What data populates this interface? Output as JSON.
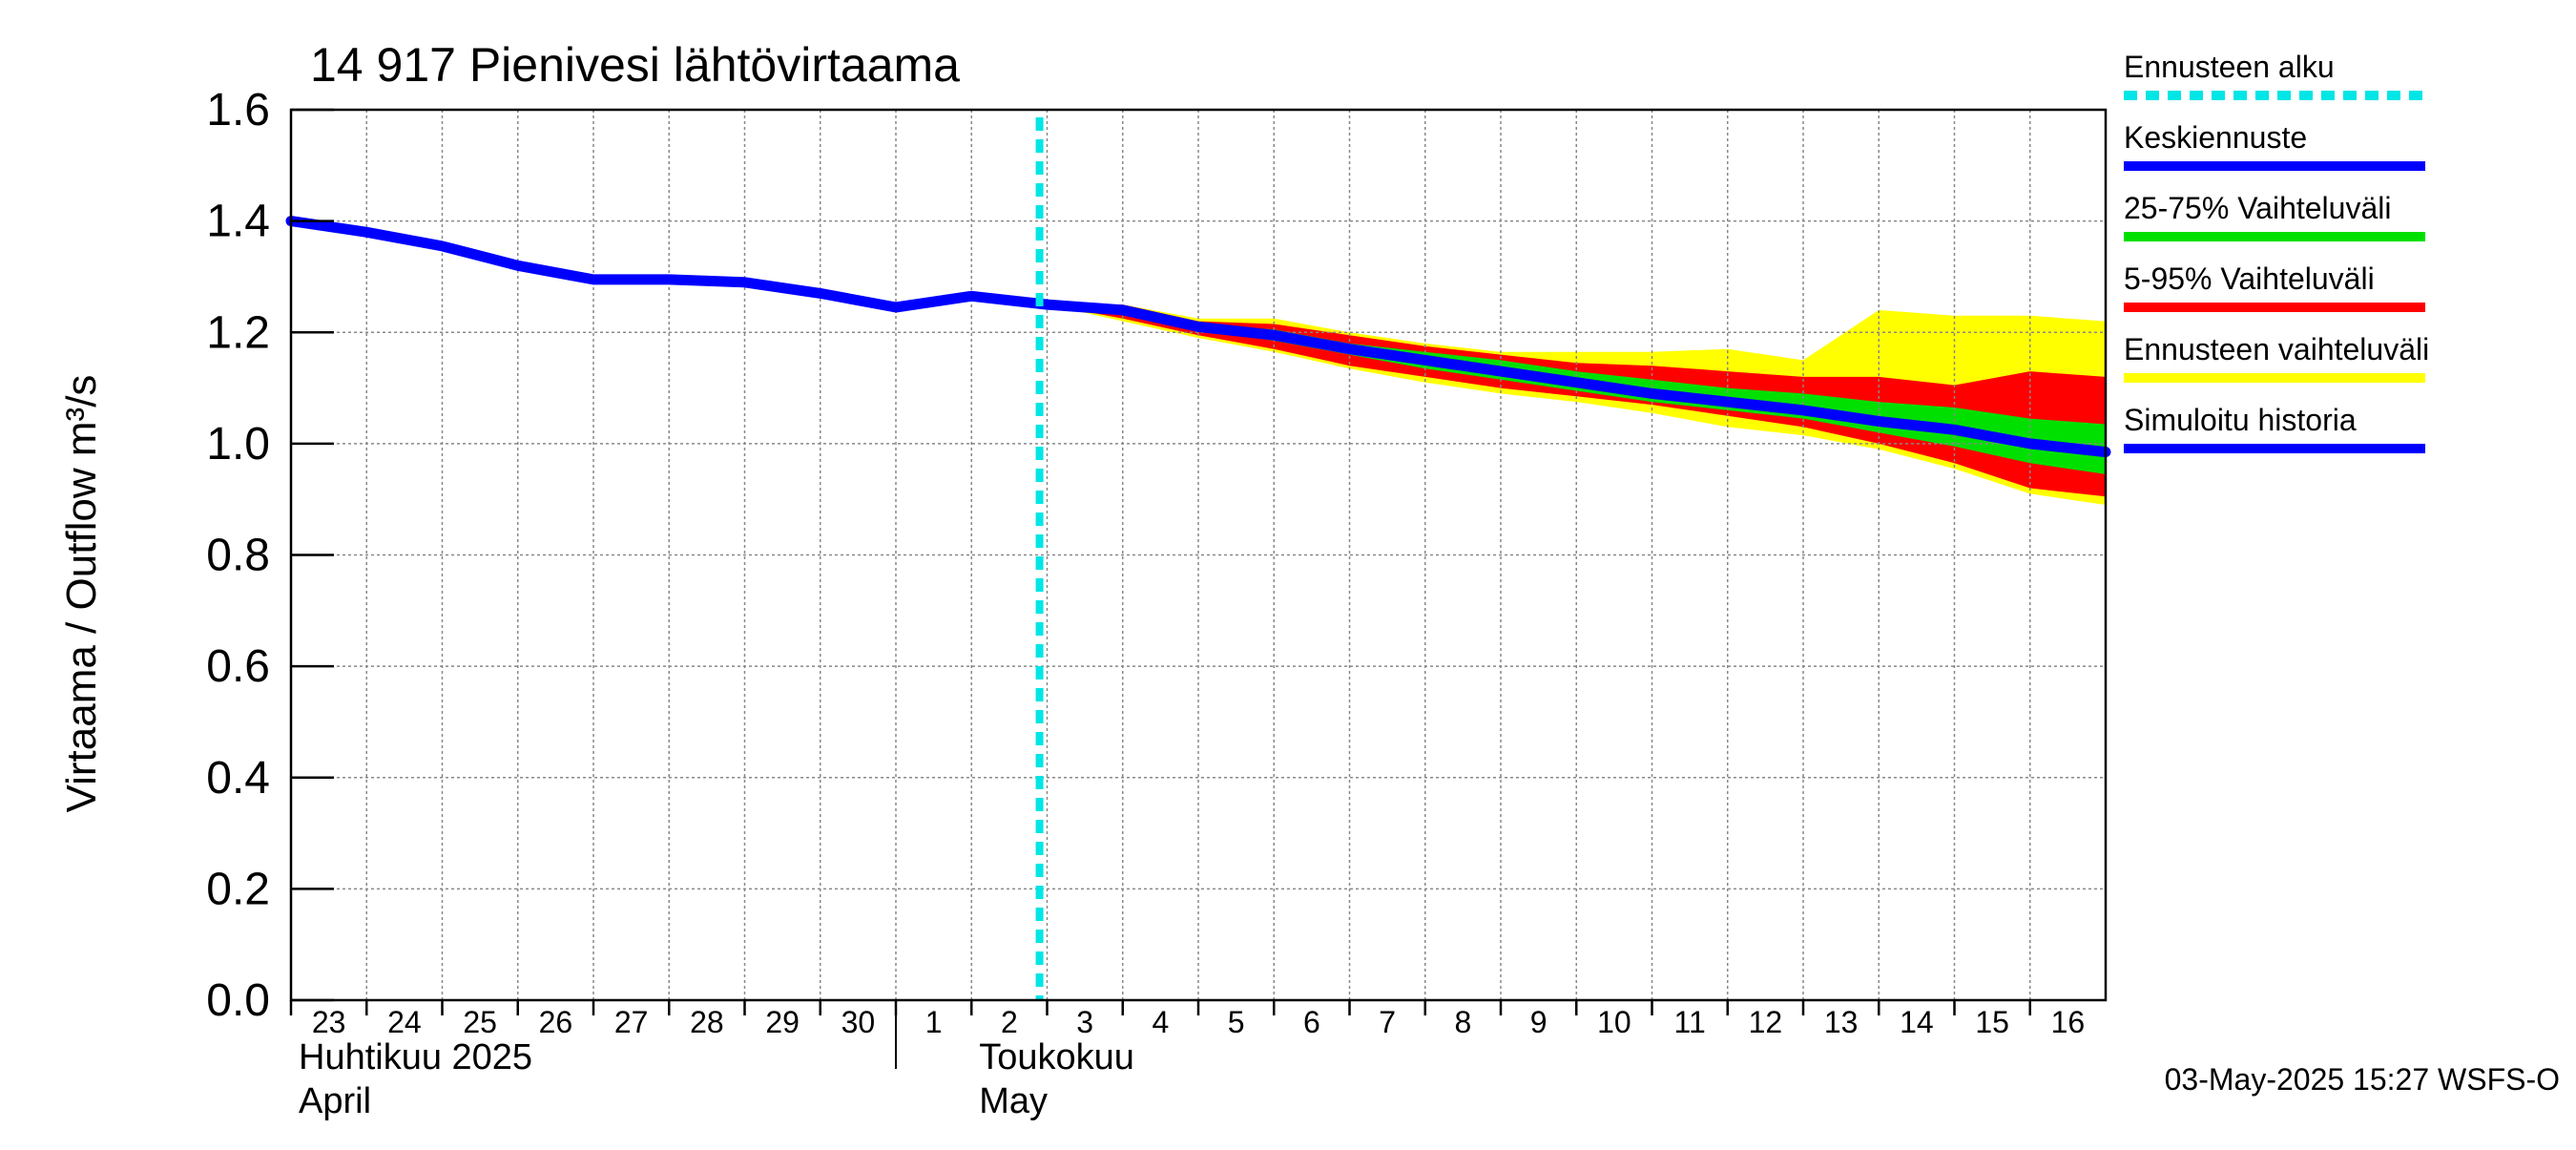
{
  "chart_data": {
    "type": "line",
    "title": "14 917 Pienivesi lähtövirtaama",
    "ylabel": "Virtaama / Outflow    m³/s",
    "xlabel": "",
    "ylim": [
      0.0,
      1.6
    ],
    "yticks": [
      "0.0",
      "0.2",
      "0.4",
      "0.6",
      "0.8",
      "1.0",
      "1.2",
      "1.4",
      "1.6"
    ],
    "x_day_labels": [
      "23",
      "24",
      "25",
      "26",
      "27",
      "28",
      "29",
      "30",
      "1",
      "2",
      "3",
      "4",
      "5",
      "6",
      "7",
      "8",
      "9",
      "10",
      "11",
      "12",
      "13",
      "14",
      "15",
      "16"
    ],
    "month_labels": [
      {
        "line1": "Huhtikuu  2025",
        "line2": "April",
        "at_day": 0
      },
      {
        "line1": "Toukokuu",
        "line2": "May",
        "at_day": 9
      }
    ],
    "forecast_start_day": 9.9,
    "x_max_day": 24,
    "series": [
      {
        "name": "Simuloitu historia",
        "x": [
          0,
          1,
          2,
          3,
          4,
          5,
          6,
          7,
          8,
          9,
          10
        ],
        "values": [
          1.4,
          1.38,
          1.355,
          1.32,
          1.295,
          1.295,
          1.29,
          1.27,
          1.245,
          1.265,
          1.25
        ]
      },
      {
        "name": "Keskiennuste",
        "x": [
          10,
          11,
          12,
          13,
          14,
          15,
          16,
          17,
          18,
          19,
          20,
          21,
          22,
          23,
          24
        ],
        "values": [
          1.25,
          1.24,
          1.21,
          1.195,
          1.17,
          1.15,
          1.13,
          1.11,
          1.09,
          1.075,
          1.06,
          1.04,
          1.025,
          1.0,
          0.985
        ]
      }
    ],
    "bands": [
      {
        "name": "Ennusteen vaihteluväli",
        "x": [
          10,
          11,
          12,
          13,
          14,
          15,
          16,
          17,
          18,
          19,
          20,
          21,
          22,
          23,
          24
        ],
        "upper": [
          1.25,
          1.25,
          1.225,
          1.225,
          1.2,
          1.18,
          1.165,
          1.165,
          1.165,
          1.17,
          1.15,
          1.24,
          1.23,
          1.23,
          1.22
        ],
        "lower": [
          1.25,
          1.22,
          1.19,
          1.165,
          1.135,
          1.11,
          1.09,
          1.075,
          1.055,
          1.03,
          1.015,
          0.99,
          0.955,
          0.91,
          0.89
        ]
      },
      {
        "name": "5-95% Vaihteluväli",
        "x": [
          10,
          11,
          12,
          13,
          14,
          15,
          16,
          17,
          18,
          19,
          20,
          21,
          22,
          23,
          24
        ],
        "upper": [
          1.25,
          1.25,
          1.22,
          1.215,
          1.195,
          1.175,
          1.16,
          1.145,
          1.14,
          1.13,
          1.12,
          1.12,
          1.105,
          1.13,
          1.12
        ],
        "lower": [
          1.25,
          1.225,
          1.195,
          1.17,
          1.14,
          1.12,
          1.1,
          1.085,
          1.07,
          1.05,
          1.03,
          1.0,
          0.965,
          0.92,
          0.905
        ]
      },
      {
        "name": "25-75% Vaihteluväli",
        "x": [
          10,
          11,
          12,
          13,
          14,
          15,
          16,
          17,
          18,
          19,
          20,
          21,
          22,
          23,
          24
        ],
        "upper": [
          1.25,
          1.245,
          1.215,
          1.205,
          1.18,
          1.165,
          1.15,
          1.13,
          1.115,
          1.1,
          1.09,
          1.075,
          1.065,
          1.045,
          1.035
        ],
        "lower": [
          1.25,
          1.235,
          1.205,
          1.185,
          1.16,
          1.135,
          1.115,
          1.095,
          1.075,
          1.06,
          1.045,
          1.02,
          0.995,
          0.965,
          0.945
        ]
      }
    ],
    "legend": [
      {
        "label": "Ennusteen alku",
        "color": "#00e5e5",
        "style": "dashed"
      },
      {
        "label": "Keskiennuste",
        "color": "#0000ff",
        "style": "solid"
      },
      {
        "label": "25-75% Vaihteluväli",
        "color": "#00e000",
        "style": "solid"
      },
      {
        "label": "5-95% Vaihteluväli",
        "color": "#ff0000",
        "style": "solid"
      },
      {
        "label": "Ennusteen vaihteluväli",
        "color": "#ffff00",
        "style": "solid"
      },
      {
        "label": "Simuloitu historia",
        "color": "#0000ff",
        "style": "solid"
      }
    ],
    "colors": {
      "history": "#0000ff",
      "median": "#0000ff",
      "band_25_75": "#00e000",
      "band_5_95": "#ff0000",
      "band_full": "#ffff00",
      "forecast_start": "#00e5e5",
      "grid": "#888888"
    },
    "footer": "03-May-2025 15:27 WSFS-O"
  }
}
